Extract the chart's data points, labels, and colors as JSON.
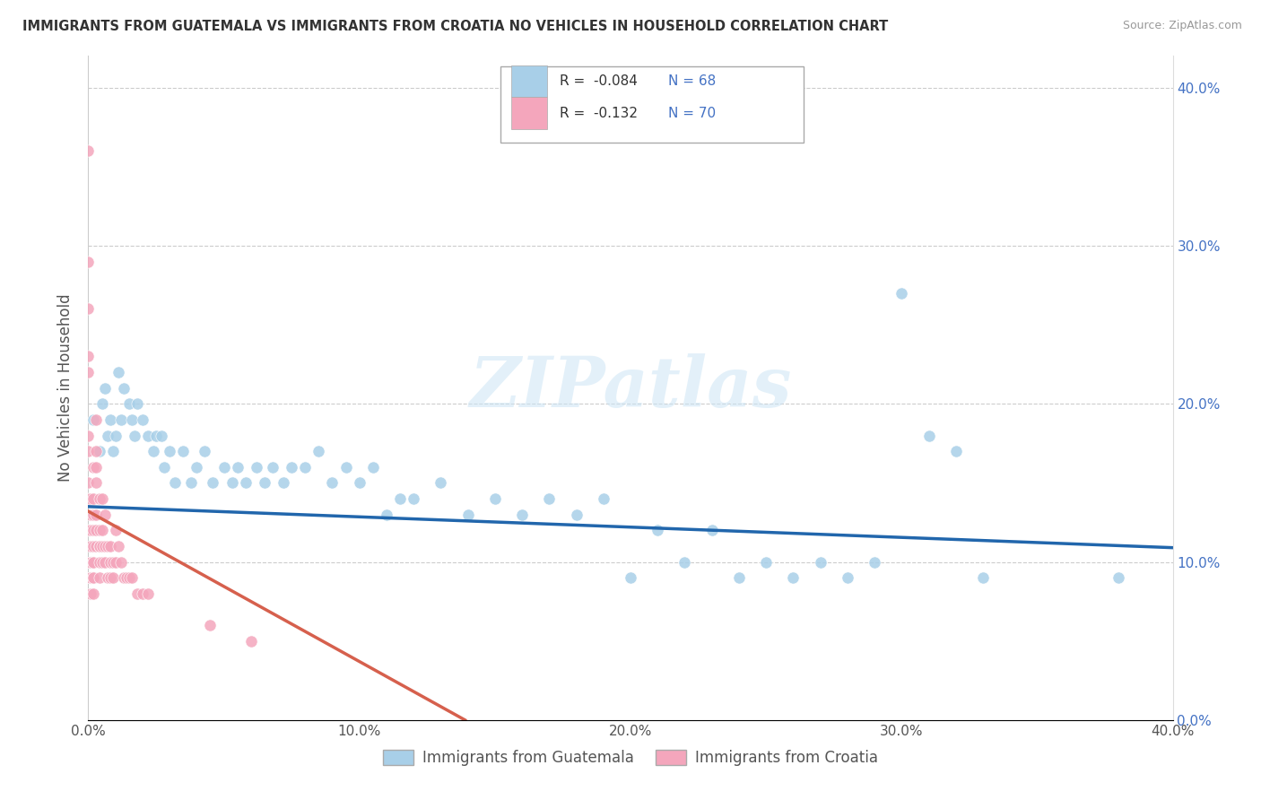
{
  "title": "IMMIGRANTS FROM GUATEMALA VS IMMIGRANTS FROM CROATIA NO VEHICLES IN HOUSEHOLD CORRELATION CHART",
  "source": "Source: ZipAtlas.com",
  "ylabel": "No Vehicles in Household",
  "xmin": 0.0,
  "xmax": 0.4,
  "ymin": 0.0,
  "ymax": 0.42,
  "watermark": "ZIPatlas",
  "legend_R1": "R = -0.084",
  "legend_N1": "N = 68",
  "legend_R2": "R = -0.132",
  "legend_N2": "N = 70",
  "blue_color": "#a8cfe8",
  "pink_color": "#f4a6bc",
  "blue_line_color": "#2166ac",
  "pink_line_color": "#d6604d",
  "blue_intercept": 0.135,
  "blue_slope": -0.065,
  "pink_intercept": 0.132,
  "pink_slope": -0.95,
  "legend_label_blue": "Immigrants from Guatemala",
  "legend_label_pink": "Immigrants from Croatia",
  "blue_scatter_x": [
    0.002,
    0.004,
    0.005,
    0.006,
    0.007,
    0.008,
    0.009,
    0.01,
    0.011,
    0.012,
    0.013,
    0.015,
    0.016,
    0.017,
    0.018,
    0.02,
    0.022,
    0.024,
    0.025,
    0.027,
    0.028,
    0.03,
    0.032,
    0.035,
    0.038,
    0.04,
    0.043,
    0.046,
    0.05,
    0.053,
    0.055,
    0.058,
    0.062,
    0.065,
    0.068,
    0.072,
    0.075,
    0.08,
    0.085,
    0.09,
    0.095,
    0.1,
    0.105,
    0.11,
    0.115,
    0.12,
    0.13,
    0.14,
    0.15,
    0.16,
    0.17,
    0.18,
    0.19,
    0.2,
    0.21,
    0.22,
    0.23,
    0.24,
    0.25,
    0.26,
    0.27,
    0.28,
    0.29,
    0.3,
    0.31,
    0.32,
    0.33,
    0.38
  ],
  "blue_scatter_y": [
    0.19,
    0.17,
    0.2,
    0.21,
    0.18,
    0.19,
    0.17,
    0.18,
    0.22,
    0.19,
    0.21,
    0.2,
    0.19,
    0.18,
    0.2,
    0.19,
    0.18,
    0.17,
    0.18,
    0.18,
    0.16,
    0.17,
    0.15,
    0.17,
    0.15,
    0.16,
    0.17,
    0.15,
    0.16,
    0.15,
    0.16,
    0.15,
    0.16,
    0.15,
    0.16,
    0.15,
    0.16,
    0.16,
    0.17,
    0.15,
    0.16,
    0.15,
    0.16,
    0.13,
    0.14,
    0.14,
    0.15,
    0.13,
    0.14,
    0.13,
    0.14,
    0.13,
    0.14,
    0.09,
    0.12,
    0.1,
    0.12,
    0.09,
    0.1,
    0.09,
    0.1,
    0.09,
    0.1,
    0.27,
    0.18,
    0.17,
    0.09,
    0.09
  ],
  "pink_scatter_x": [
    0.0,
    0.0,
    0.0,
    0.0,
    0.0,
    0.0,
    0.0,
    0.0,
    0.0,
    0.0,
    0.001,
    0.001,
    0.001,
    0.001,
    0.001,
    0.001,
    0.001,
    0.001,
    0.001,
    0.001,
    0.002,
    0.002,
    0.002,
    0.002,
    0.002,
    0.002,
    0.002,
    0.002,
    0.002,
    0.002,
    0.003,
    0.003,
    0.003,
    0.003,
    0.003,
    0.003,
    0.003,
    0.004,
    0.004,
    0.004,
    0.004,
    0.004,
    0.004,
    0.005,
    0.005,
    0.005,
    0.005,
    0.006,
    0.006,
    0.006,
    0.007,
    0.007,
    0.008,
    0.008,
    0.008,
    0.009,
    0.009,
    0.01,
    0.01,
    0.011,
    0.012,
    0.013,
    0.014,
    0.015,
    0.016,
    0.018,
    0.02,
    0.022,
    0.045,
    0.06
  ],
  "pink_scatter_y": [
    0.36,
    0.29,
    0.26,
    0.23,
    0.22,
    0.18,
    0.17,
    0.15,
    0.14,
    0.12,
    0.14,
    0.13,
    0.12,
    0.11,
    0.1,
    0.1,
    0.1,
    0.09,
    0.09,
    0.08,
    0.16,
    0.14,
    0.13,
    0.12,
    0.11,
    0.1,
    0.1,
    0.09,
    0.09,
    0.08,
    0.19,
    0.17,
    0.16,
    0.15,
    0.13,
    0.12,
    0.11,
    0.14,
    0.12,
    0.11,
    0.11,
    0.1,
    0.09,
    0.14,
    0.12,
    0.11,
    0.1,
    0.13,
    0.11,
    0.1,
    0.11,
    0.09,
    0.11,
    0.1,
    0.09,
    0.1,
    0.09,
    0.12,
    0.1,
    0.11,
    0.1,
    0.09,
    0.09,
    0.09,
    0.09,
    0.08,
    0.08,
    0.08,
    0.06,
    0.05
  ]
}
